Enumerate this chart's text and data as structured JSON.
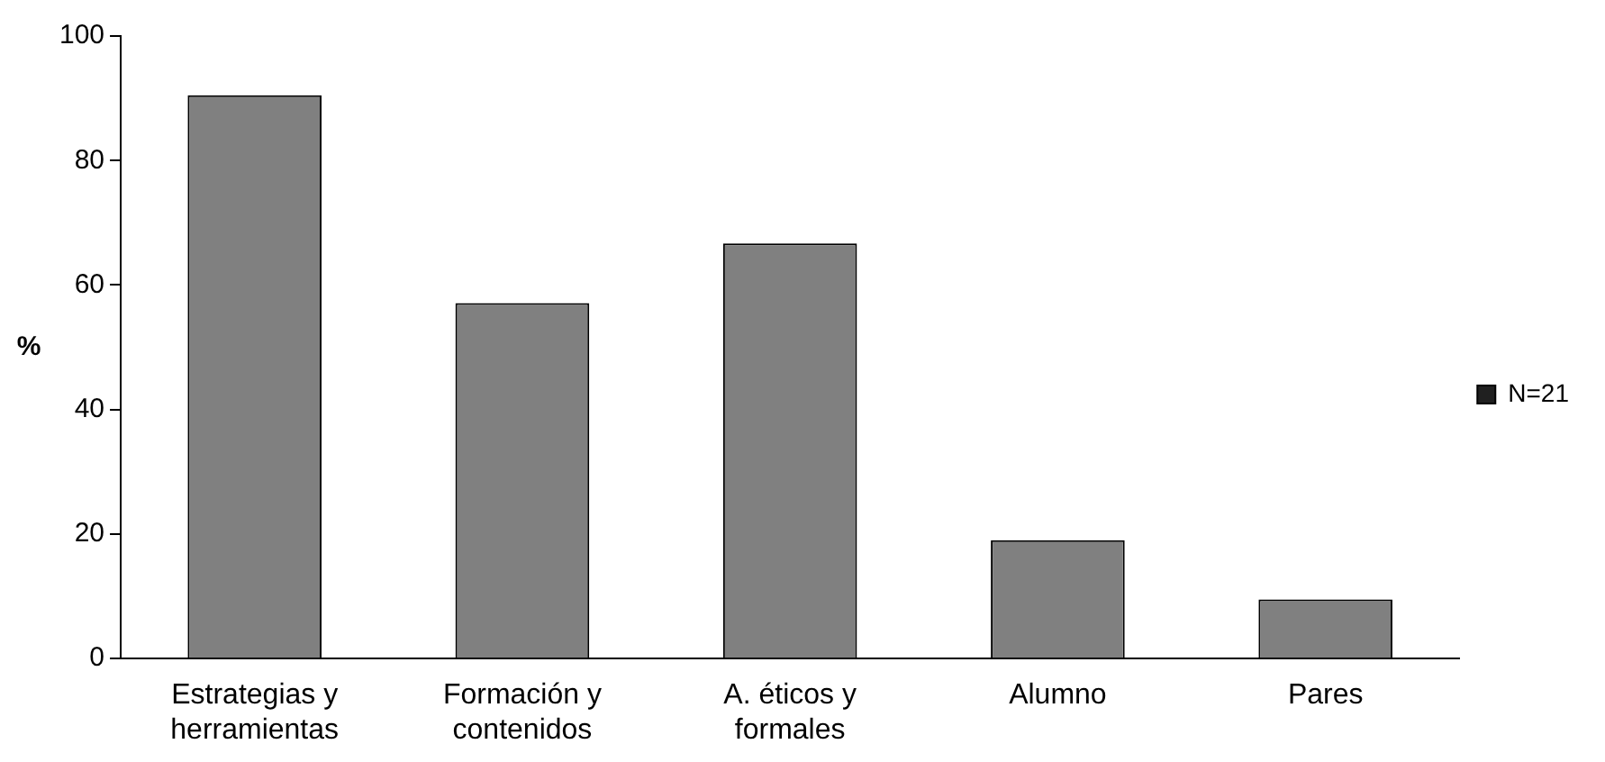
{
  "chart_data": {
    "type": "bar",
    "ylabel": "%",
    "categories": [
      "Estrategias y herramientas",
      "Formación y contenidos",
      "A. éticos y formales",
      "Alumno",
      "Pares"
    ],
    "series": [
      {
        "name": "N=21",
        "color": "#808080",
        "values": [
          90.5,
          57.1,
          66.7,
          19,
          9.5
        ]
      }
    ],
    "ylim": [
      0,
      100
    ],
    "yticks": [
      0,
      20,
      40,
      60,
      80,
      100
    ],
    "grid": false,
    "legend": "right"
  }
}
